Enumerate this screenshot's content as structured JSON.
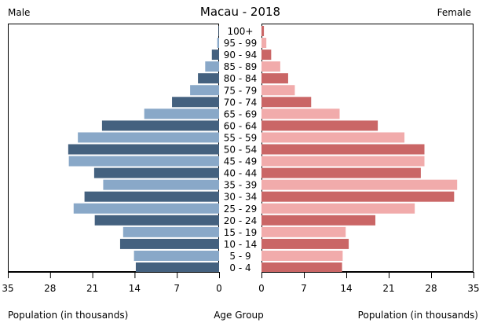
{
  "chart_data": {
    "type": "bar",
    "title": "Macau - 2018",
    "left_label": "Male",
    "right_label": "Female",
    "xlabel_left": "Population (in thousands)",
    "xlabel_center": "Age Group",
    "xlabel_right": "Population (in thousands)",
    "xlim": [
      0,
      35
    ],
    "xticks": [
      "35",
      "28",
      "21",
      "14",
      "7",
      "0"
    ],
    "xticks_right": [
      "0",
      "7",
      "14",
      "21",
      "28",
      "35"
    ],
    "categories": [
      "100+",
      "95 - 99",
      "90 - 94",
      "85 - 89",
      "80 - 84",
      "75 - 79",
      "70 - 74",
      "65 - 69",
      "60 - 64",
      "55 - 59",
      "50 - 54",
      "45 - 49",
      "40 - 44",
      "35 - 39",
      "30 - 34",
      "25 - 29",
      "20 - 24",
      "15 - 19",
      "10 - 14",
      "5 - 9",
      "0 - 4"
    ],
    "series": [
      {
        "name": "Male",
        "values": [
          0.1,
          0.3,
          1.2,
          2.3,
          3.5,
          4.8,
          7.8,
          12.4,
          19.4,
          23.4,
          25.0,
          24.9,
          20.7,
          19.2,
          22.3,
          24.1,
          20.6,
          15.9,
          16.4,
          14.1,
          13.8
        ]
      },
      {
        "name": "Female",
        "values": [
          0.4,
          0.8,
          1.6,
          3.1,
          4.4,
          5.5,
          8.2,
          12.9,
          19.2,
          23.6,
          26.9,
          26.9,
          26.3,
          32.3,
          31.8,
          25.3,
          18.8,
          13.9,
          14.4,
          13.4,
          13.3
        ]
      }
    ],
    "colors": {
      "male_dark": "#44617f",
      "male_light": "#89a8c8",
      "female_dark": "#ca6666",
      "female_light": "#f1abab"
    },
    "grid": false
  }
}
